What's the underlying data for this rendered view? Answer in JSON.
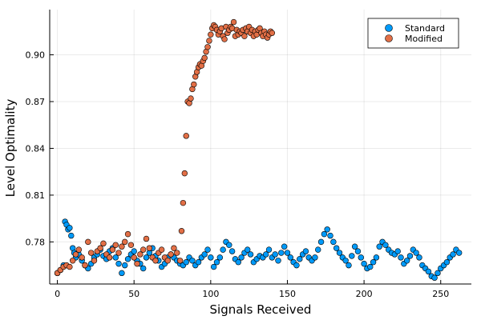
{
  "chart_data": {
    "type": "scatter",
    "xlabel": "Signals Received",
    "ylabel": "Level Optimality",
    "xlim": [
      -5,
      270
    ],
    "ylim": [
      0.753,
      0.929
    ],
    "xticks": [
      0,
      50,
      100,
      150,
      200,
      250
    ],
    "yticks": [
      0.78,
      0.81,
      0.84,
      0.87,
      0.9
    ],
    "ytick_labels": [
      "0.78",
      "0.81",
      "0.84",
      "0.87",
      "0.90"
    ],
    "grid": true,
    "legend_position": "top-right",
    "series": [
      {
        "name": "Standard",
        "color": "#009AF9",
        "x": [
          0,
          2,
          4,
          5,
          6,
          7,
          8,
          9,
          10,
          11,
          12,
          14,
          16,
          18,
          20,
          22,
          24,
          26,
          28,
          30,
          32,
          34,
          36,
          38,
          40,
          42,
          44,
          46,
          48,
          50,
          52,
          54,
          56,
          58,
          60,
          62,
          64,
          66,
          68,
          70,
          72,
          74,
          76,
          78,
          80,
          82,
          84,
          86,
          88,
          90,
          92,
          94,
          96,
          98,
          100,
          102,
          104,
          106,
          108,
          110,
          112,
          114,
          116,
          118,
          120,
          122,
          124,
          126,
          128,
          130,
          132,
          134,
          136,
          138,
          140,
          142,
          144,
          146,
          148,
          150,
          152,
          154,
          156,
          158,
          160,
          162,
          164,
          166,
          168,
          170,
          172,
          174,
          176,
          178,
          180,
          182,
          184,
          186,
          188,
          190,
          192,
          194,
          196,
          198,
          200,
          202,
          204,
          206,
          208,
          210,
          212,
          214,
          216,
          218,
          220,
          222,
          224,
          226,
          228,
          230,
          232,
          234,
          236,
          238,
          240,
          242,
          244,
          246,
          248,
          250,
          252,
          254,
          256,
          258,
          260,
          262
        ],
        "y": [
          0.76,
          0.762,
          0.765,
          0.793,
          0.791,
          0.788,
          0.789,
          0.784,
          0.776,
          0.773,
          0.77,
          0.772,
          0.768,
          0.765,
          0.763,
          0.766,
          0.77,
          0.772,
          0.775,
          0.771,
          0.769,
          0.774,
          0.776,
          0.77,
          0.766,
          0.76,
          0.765,
          0.769,
          0.772,
          0.774,
          0.768,
          0.766,
          0.763,
          0.77,
          0.773,
          0.776,
          0.771,
          0.768,
          0.764,
          0.766,
          0.77,
          0.772,
          0.77,
          0.768,
          0.766,
          0.765,
          0.767,
          0.77,
          0.768,
          0.765,
          0.767,
          0.77,
          0.772,
          0.775,
          0.77,
          0.764,
          0.767,
          0.77,
          0.775,
          0.78,
          0.778,
          0.774,
          0.769,
          0.767,
          0.77,
          0.773,
          0.775,
          0.772,
          0.767,
          0.769,
          0.771,
          0.77,
          0.772,
          0.775,
          0.77,
          0.772,
          0.768,
          0.773,
          0.777,
          0.773,
          0.77,
          0.767,
          0.765,
          0.769,
          0.772,
          0.774,
          0.77,
          0.768,
          0.77,
          0.775,
          0.78,
          0.785,
          0.788,
          0.784,
          0.78,
          0.776,
          0.773,
          0.77,
          0.768,
          0.765,
          0.771,
          0.777,
          0.774,
          0.77,
          0.766,
          0.763,
          0.764,
          0.767,
          0.77,
          0.777,
          0.78,
          0.778,
          0.775,
          0.773,
          0.772,
          0.774,
          0.77,
          0.766,
          0.768,
          0.771,
          0.775,
          0.773,
          0.77,
          0.765,
          0.763,
          0.761,
          0.758,
          0.757,
          0.76,
          0.763,
          0.765,
          0.767,
          0.77,
          0.772,
          0.775,
          0.773
        ]
      },
      {
        "name": "Modified",
        "color": "#E26F46",
        "x": [
          0,
          2,
          4,
          6,
          8,
          10,
          12,
          14,
          16,
          18,
          20,
          22,
          24,
          26,
          28,
          30,
          32,
          34,
          36,
          38,
          40,
          42,
          44,
          46,
          48,
          50,
          52,
          54,
          56,
          58,
          60,
          62,
          64,
          66,
          68,
          70,
          72,
          74,
          76,
          78,
          80,
          81,
          82,
          83,
          84,
          85,
          86,
          87,
          88,
          89,
          90,
          91,
          92,
          93,
          94,
          95,
          96,
          97,
          98,
          99,
          100,
          101,
          102,
          103,
          104,
          105,
          106,
          107,
          108,
          109,
          110,
          111,
          112,
          113,
          114,
          115,
          116,
          117,
          118,
          119,
          120,
          121,
          122,
          123,
          124,
          125,
          126,
          127,
          128,
          129,
          130,
          131,
          132,
          133,
          134,
          135,
          136,
          137,
          138,
          139,
          140
        ],
        "y": [
          0.76,
          0.762,
          0.764,
          0.765,
          0.764,
          0.768,
          0.772,
          0.775,
          0.77,
          0.765,
          0.78,
          0.773,
          0.768,
          0.774,
          0.776,
          0.779,
          0.772,
          0.77,
          0.775,
          0.778,
          0.773,
          0.777,
          0.78,
          0.785,
          0.778,
          0.77,
          0.766,
          0.772,
          0.775,
          0.782,
          0.776,
          0.77,
          0.768,
          0.773,
          0.775,
          0.77,
          0.768,
          0.772,
          0.776,
          0.773,
          0.768,
          0.787,
          0.805,
          0.824,
          0.848,
          0.87,
          0.869,
          0.872,
          0.878,
          0.881,
          0.886,
          0.889,
          0.892,
          0.894,
          0.893,
          0.896,
          0.898,
          0.902,
          0.905,
          0.909,
          0.913,
          0.917,
          0.919,
          0.918,
          0.916,
          0.913,
          0.915,
          0.917,
          0.912,
          0.91,
          0.918,
          0.914,
          0.916,
          0.918,
          0.917,
          0.921,
          0.912,
          0.916,
          0.913,
          0.915,
          0.914,
          0.916,
          0.912,
          0.917,
          0.915,
          0.918,
          0.914,
          0.916,
          0.912,
          0.915,
          0.913,
          0.916,
          0.917,
          0.914,
          0.912,
          0.915,
          0.913,
          0.911,
          0.913,
          0.915,
          0.914
        ]
      }
    ]
  }
}
